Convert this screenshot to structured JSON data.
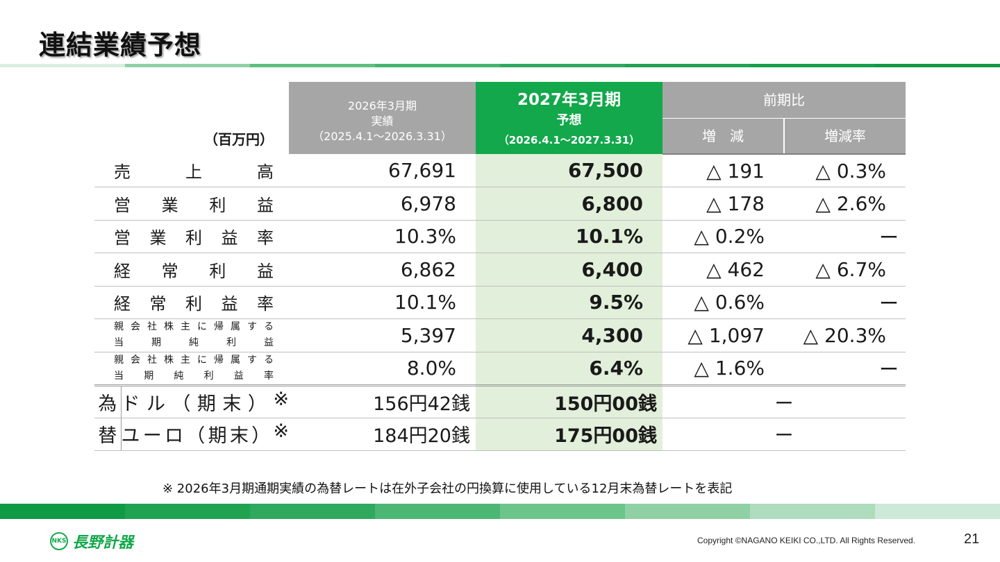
{
  "title": "連結業績予想",
  "table": {
    "unit": "（百万円）",
    "col_actual": {
      "line1": "2026年3月期",
      "line2": "実績",
      "line3": "（2025.4.1～2026.3.31）"
    },
    "col_forecast": {
      "line1": "2027年3月期",
      "line2": "予想",
      "line3": "（2026.4.1～2027.3.31）"
    },
    "col_compare": {
      "label": "前期比",
      "sub1": "増　減",
      "sub2": "増減率"
    },
    "rows": [
      {
        "chars": [
          "売",
          "上",
          "高"
        ],
        "actual": "67,691",
        "forecast": "67,500",
        "diff": "△ 191",
        "rate": "△ 0.3%"
      },
      {
        "chars": [
          "営",
          "業",
          "利",
          "益"
        ],
        "actual": "6,978",
        "forecast": "6,800",
        "diff": "△ 178",
        "rate": "△ 2.6%"
      },
      {
        "chars": [
          "営",
          "業",
          "利",
          "益",
          "率"
        ],
        "actual": "10.3%",
        "forecast": "10.1%",
        "diff": "△ 0.2%",
        "rate": "ー"
      },
      {
        "chars": [
          "経",
          "常",
          "利",
          "益"
        ],
        "actual": "6,862",
        "forecast": "6,400",
        "diff": "△ 462",
        "rate": "△ 6.7%"
      },
      {
        "chars": [
          "経",
          "常",
          "利",
          "益",
          "率"
        ],
        "actual": "10.1%",
        "forecast": "9.5%",
        "diff": "△ 0.6%",
        "rate": "ー"
      },
      {
        "line1": [
          "親",
          "会",
          "社",
          "株",
          "主",
          "に",
          "帰",
          "属",
          "す",
          "る"
        ],
        "line2": [
          "当",
          "期",
          "純",
          "利",
          "益"
        ],
        "actual": "5,397",
        "forecast": "4,300",
        "diff": "△ 1,097",
        "rate": "△ 20.3%"
      },
      {
        "line1": [
          "親",
          "会",
          "社",
          "株",
          "主",
          "に",
          "帰",
          "属",
          "す",
          "る"
        ],
        "line2": [
          "当",
          "期",
          "純",
          "利",
          "益",
          "率"
        ],
        "actual": "8.0%",
        "forecast": "6.4%",
        "diff": "△ 1.6%",
        "rate": "ー"
      }
    ],
    "fx": {
      "side1": "為",
      "side2": "替",
      "rows": [
        {
          "chars": [
            "ド",
            "ル",
            "（",
            "期",
            "末",
            "）",
            "※"
          ],
          "actual": "156円42銭",
          "forecast": "150円00銭",
          "diff": "ー"
        },
        {
          "chars": [
            "ユ",
            "ー",
            "ロ",
            "（",
            "期",
            "末",
            "）",
            "※"
          ],
          "actual": "184円20銭",
          "forecast": "175円00銭",
          "diff": "ー"
        }
      ]
    }
  },
  "note": "※ 2026年3月期通期実績の為替レートは在外子会社の円換算に使用している12月末為替レートを表記",
  "footer": {
    "logo_mark": "NKS",
    "logo_text": "長野計器",
    "copyright": "Copyright ©NAGANO KEIKI CO.,LTD. All Rights Reserved.",
    "page": "21"
  },
  "colors": {
    "accent_green": "#12a84b",
    "header_gray": "#a6a6a6",
    "forecast_bg": "#e2efda",
    "band": [
      "#d9efe0",
      "#8fd0a5",
      "#5cbf80",
      "#43b46e",
      "#2ea95e",
      "#1fa352",
      "#14a04b",
      "#0f9a45"
    ],
    "band_bottom": [
      "#0f9a45",
      "#1fa352",
      "#2ea95e",
      "#4cb774",
      "#6cc58b",
      "#8fd0a5",
      "#aedcbd",
      "#cde9d7"
    ]
  }
}
